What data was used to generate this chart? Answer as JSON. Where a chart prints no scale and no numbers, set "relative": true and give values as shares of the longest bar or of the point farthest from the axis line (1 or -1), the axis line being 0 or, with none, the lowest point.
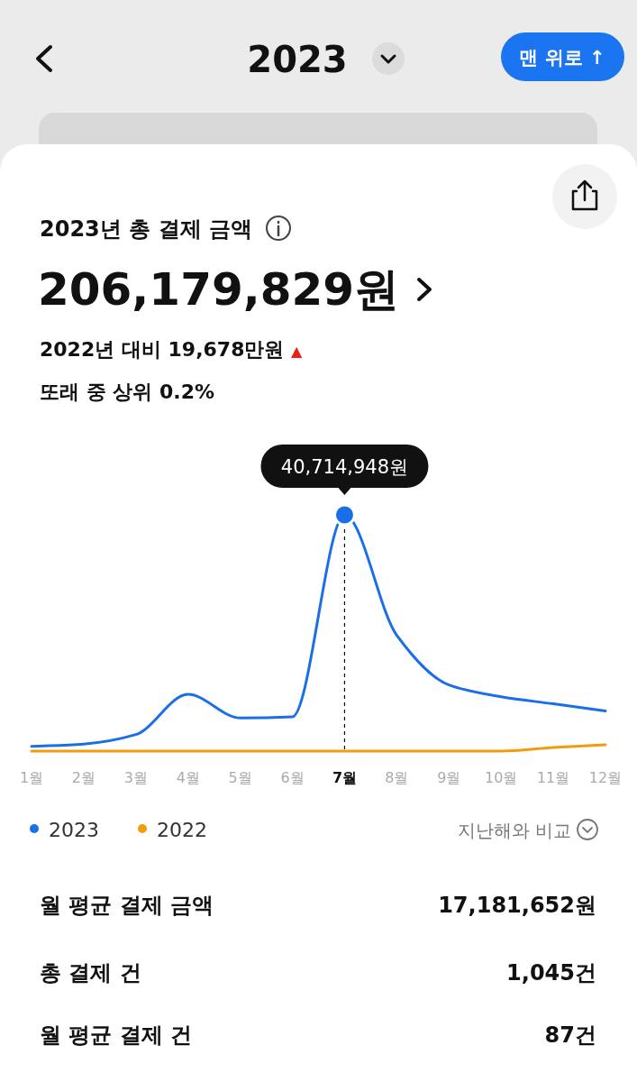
{
  "chart_data": {
    "type": "line",
    "title": "2023년 총 결제 금액",
    "relative": true,
    "categories": [
      "1월",
      "2월",
      "3월",
      "4월",
      "5월",
      "6월",
      "7월",
      "8월",
      "9월",
      "10월",
      "11월",
      "12월"
    ],
    "series": [
      {
        "name": "2023",
        "color": "#1a6fe8",
        "values": [
          0.02,
          0.03,
          0.07,
          0.24,
          0.14,
          0.145,
          1,
          0.49,
          0.28,
          0.23,
          0.2,
          0.17
        ]
      },
      {
        "name": "2022",
        "color": "#f29b0c",
        "values": [
          0,
          0,
          0,
          0,
          0,
          0,
          0,
          0,
          0,
          0,
          0.015,
          0.027
        ]
      }
    ],
    "ref_lines": [
      {
        "axis": "x",
        "value": "7월",
        "color": "#000000",
        "line_style": "dashed"
      }
    ],
    "legend": "bottom left",
    "grid": false,
    "marker": "none",
    "line_style": "solid",
    "annotations": [
      "2023",
      "맨 위로 ↑",
      "206,179,829원",
      "2022년 대비 19,678만원 ▲",
      "또래 중 상위 0.2%",
      {
        "text": "40,714,948원",
        "x": "7월",
        "y": 1
      },
      "지난해와 비교",
      "월 평균 결제 금액",
      "17,181,652원",
      "총 결제 건",
      "1,045건",
      "월 평균 결제 건",
      "87건"
    ]
  }
}
